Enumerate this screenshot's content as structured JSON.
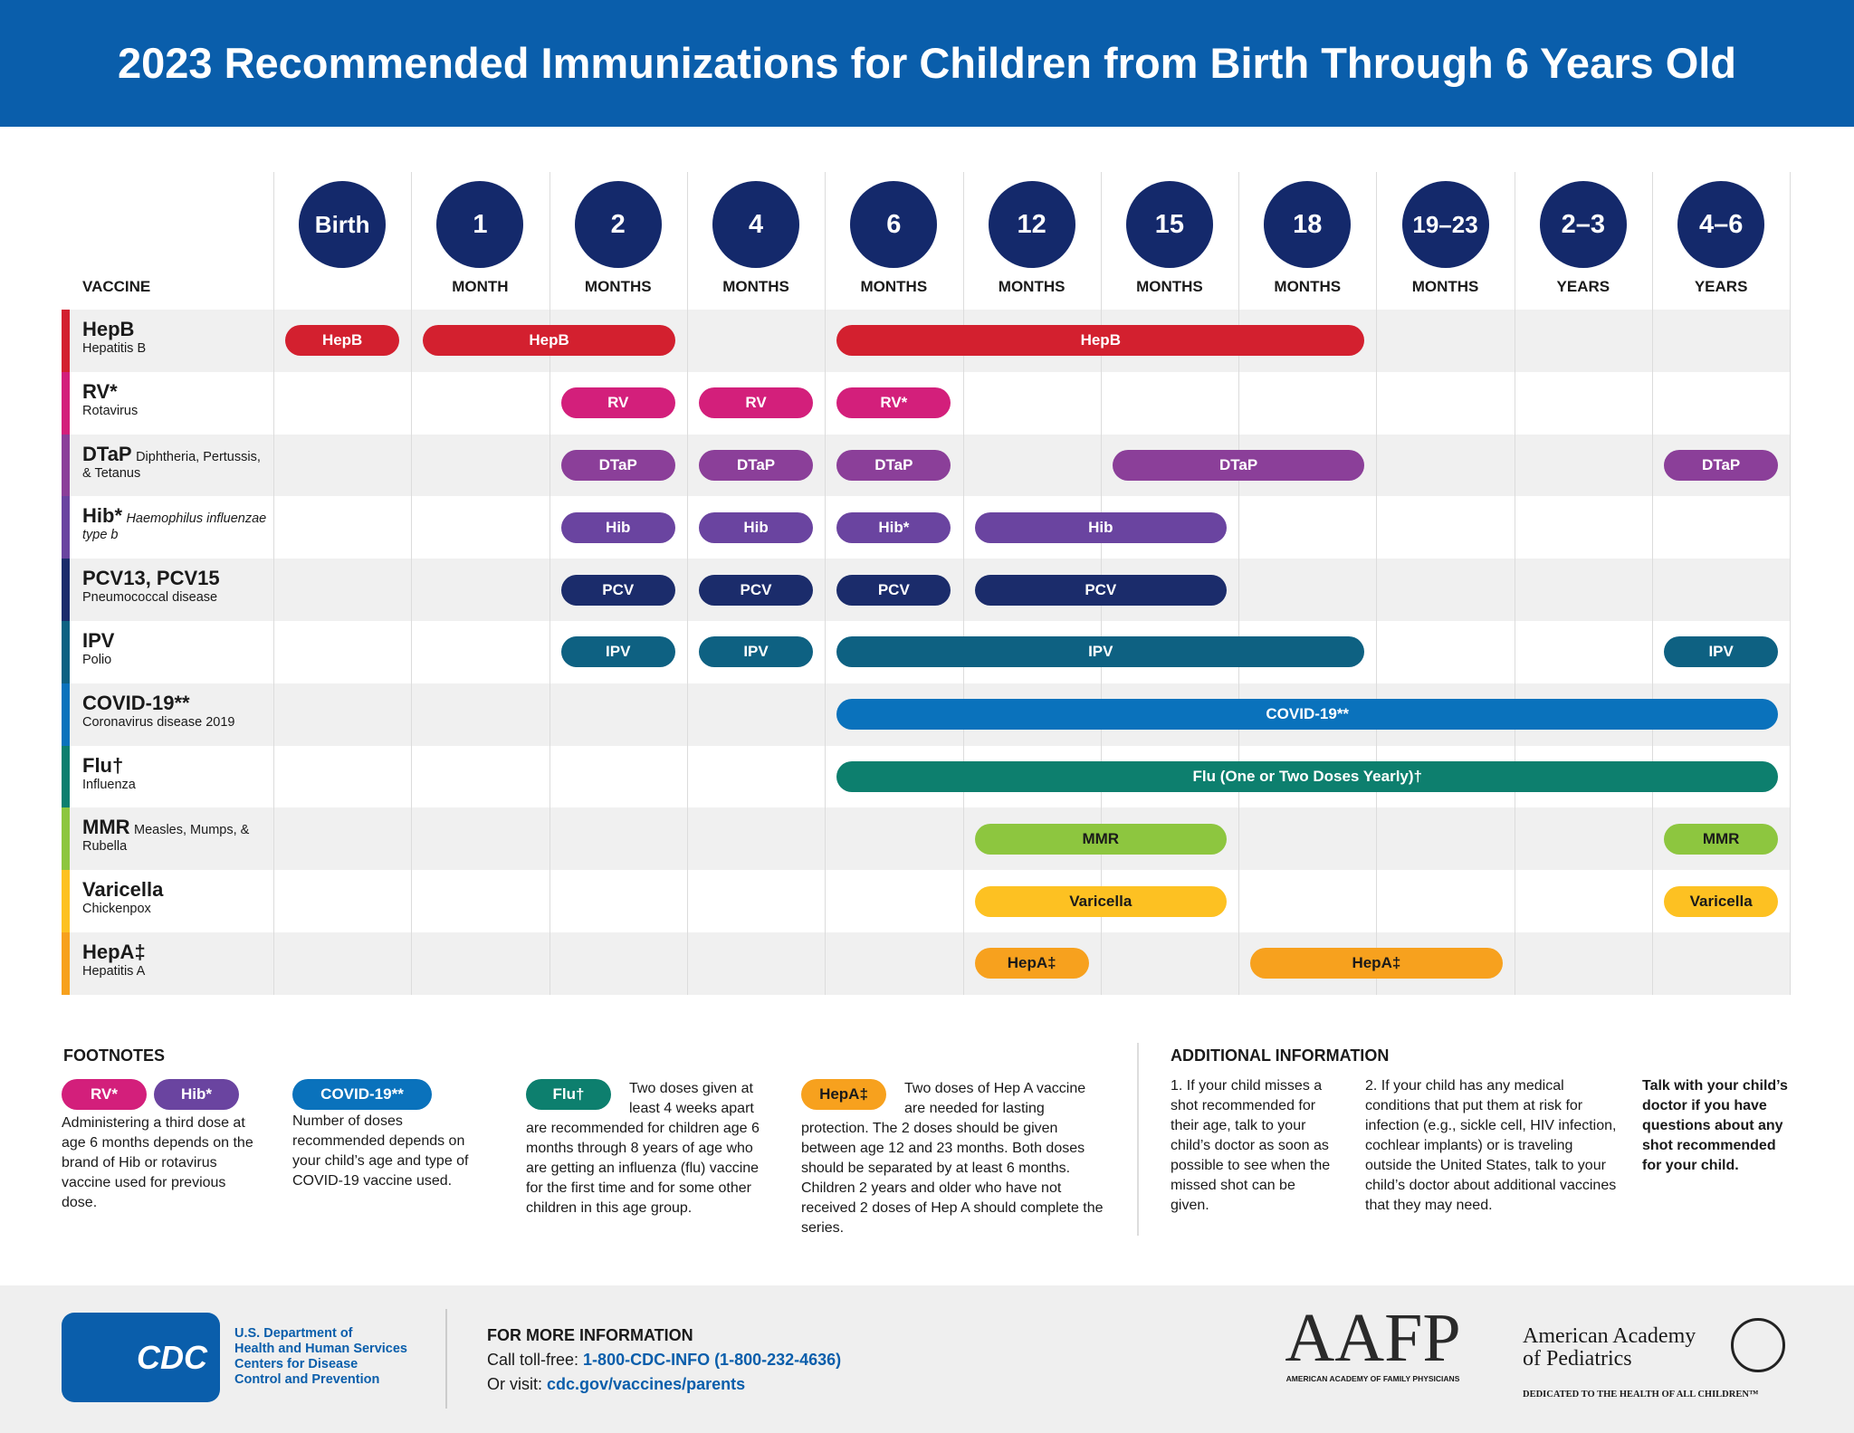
{
  "header": {
    "title": "2023 Recommended Immunizations for Children from Birth Through 6 Years Old"
  },
  "schedule": {
    "vaccine_heading": "VACCINE",
    "ages": [
      {
        "label": "Birth"
      },
      {
        "label": "1",
        "unit": "MONTH"
      },
      {
        "label": "2",
        "unit": "MONTHS"
      },
      {
        "label": "4",
        "unit": "MONTHS"
      },
      {
        "label": "6",
        "unit": "MONTHS"
      },
      {
        "label": "12",
        "unit": "MONTHS"
      },
      {
        "label": "15",
        "unit": "MONTHS"
      },
      {
        "label": "18",
        "unit": "MONTHS"
      },
      {
        "label": "19–23",
        "unit": "MONTHS"
      },
      {
        "label": "2–3",
        "unit": "YEARS"
      },
      {
        "label": "4–6",
        "unit": "YEARS"
      }
    ],
    "vaccines": [
      {
        "name": "HepB",
        "description": "Hepatitis B",
        "color": "#d3202f",
        "label_color": "#ffffff",
        "doses": [
          "HepB",
          "HepB",
          "HepB"
        ]
      },
      {
        "name": "RV*",
        "description": "Rotavirus",
        "color": "#d31f7b",
        "label_color": "#ffffff",
        "doses": [
          "RV",
          "RV",
          "RV*"
        ]
      },
      {
        "name": "DTaP",
        "description": "Diphtheria, Pertussis, & Tetanus",
        "color": "#8b3f99",
        "label_color": "#ffffff",
        "doses": [
          "DTaP",
          "DTaP",
          "DTaP",
          "DTaP",
          "DTaP"
        ]
      },
      {
        "name": "Hib*",
        "description": "Haemophilus influenzae type b",
        "color": "#6a44a0",
        "label_color": "#ffffff",
        "doses": [
          "Hib",
          "Hib",
          "Hib*",
          "Hib"
        ]
      },
      {
        "name": "PCV13, PCV15",
        "description": "Pneumococcal disease",
        "color": "#1b2c6b",
        "label_color": "#ffffff",
        "doses": [
          "PCV",
          "PCV",
          "PCV",
          "PCV"
        ]
      },
      {
        "name": "IPV",
        "description": "Polio",
        "color": "#0e6182",
        "label_color": "#ffffff",
        "doses": [
          "IPV",
          "IPV",
          "IPV",
          "IPV"
        ]
      },
      {
        "name": "COVID-19**",
        "description": "Coronavirus disease 2019",
        "color": "#0a72bc",
        "label_color": "#ffffff",
        "doses": [
          "COVID-19**"
        ]
      },
      {
        "name": "Flu†",
        "description": "Influenza",
        "color": "#0d7f6e",
        "label_color": "#ffffff",
        "doses": [
          "Flu (One or Two Doses Yearly)†"
        ]
      },
      {
        "name": "MMR",
        "description": "Measles, Mumps, & Rubella",
        "color": "#8dc63f",
        "label_color": "#1a1a1a",
        "doses": [
          "MMR",
          "MMR"
        ]
      },
      {
        "name": "Varicella",
        "description": "Chickenpox",
        "color": "#fdc122",
        "label_color": "#1a1a1a",
        "doses": [
          "Varicella",
          "Varicella"
        ]
      },
      {
        "name": "HepA‡",
        "description": "Hepatitis A",
        "color": "#f7a11e",
        "label_color": "#1a1a1a",
        "doses": [
          "HepA‡",
          "HepA‡"
        ]
      }
    ]
  },
  "footnotes": {
    "title": "FOOTNOTES",
    "notes": [
      {
        "tags": [
          {
            "label": "RV*",
            "color": "#d31f7b"
          },
          {
            "label": "Hib*",
            "color": "#6a44a0"
          }
        ],
        "text": "Administering a third dose at age 6 months depends on the brand of Hib or rotavirus vaccine used for previous dose."
      },
      {
        "tags": [
          {
            "label": "COVID-19**",
            "color": "#0a72bc"
          }
        ],
        "text": "Number of doses recommended depends on your child’s age and type of COVID-19 vaccine used."
      },
      {
        "tags": [
          {
            "label": "Flu†",
            "color": "#0d7f6e"
          }
        ],
        "text": "Two doses given at least 4 weeks apart are recommended for children age 6 months through 8 years of age who are getting an influenza (flu) vaccine for the first time and for some other children in this age group."
      },
      {
        "tags": [
          {
            "label": "HepA‡",
            "color": "#f7a11e"
          }
        ],
        "text": "Two doses of Hep A vaccine are needed for lasting protection. The 2 doses should be given between age 12 and 23 months. Both doses should be separated by at least 6 months. Children 2 years and older who have not received 2 doses of Hep A should complete the series."
      }
    ]
  },
  "additional": {
    "title": "ADDITIONAL INFORMATION",
    "items": [
      "1. If your child misses a shot recommended for their age, talk to your child’s doctor as soon as possible to see when the missed shot can be given.",
      "2. If your child has any medical conditions that put them at risk for infection (e.g., sickle cell, HIV infection, cochlear implants) or is traveling outside the United States, talk to your child’s doctor about additional vaccines that they may need.",
      "Talk with your child’s doctor if you have questions about any shot recommended for your child."
    ]
  },
  "footer": {
    "cdc_logo": "CDC",
    "hhs": [
      "U.S. Department of",
      "Health and Human Services",
      "Centers for Disease",
      "Control and Prevention"
    ],
    "more_info": {
      "title": "FOR MORE INFORMATION",
      "call_prefix": "Call toll-free:",
      "phone": "1-800-CDC-INFO (1-800-232-4636)",
      "visit_prefix": "Or visit:",
      "url": "cdc.gov/vaccines/parents"
    },
    "aafp": {
      "logo": "AAFP",
      "name": "AMERICAN ACADEMY OF FAMILY PHYSICIANS"
    },
    "aap": {
      "name_lines": [
        "American Academy",
        "of Pediatrics"
      ],
      "tagline": "DEDICATED TO THE HEALTH OF ALL CHILDREN™"
    }
  }
}
